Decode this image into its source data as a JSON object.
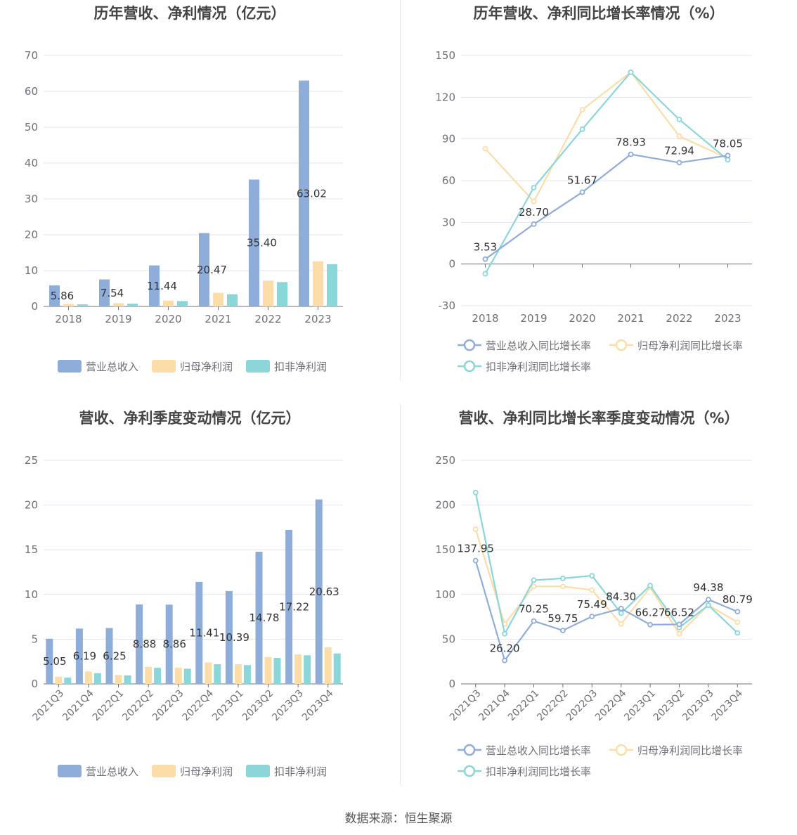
{
  "source_text": "数据来源：恒生聚源",
  "chart_data": [
    {
      "type": "bar",
      "title": "历年营收、净利情况（亿元）",
      "categories": [
        "2018",
        "2019",
        "2020",
        "2021",
        "2022",
        "2023"
      ],
      "ylim": [
        0,
        70
      ],
      "yticks": [
        0,
        10,
        20,
        30,
        40,
        50,
        60,
        70
      ],
      "series": [
        {
          "name": "营业总收入",
          "values": [
            5.86,
            7.54,
            11.44,
            20.47,
            35.4,
            63.02
          ],
          "labels": [
            "5.86",
            "7.54",
            "11.44",
            "20.47",
            "35.40",
            "63.02"
          ],
          "color": "#8eadd9"
        },
        {
          "name": "归母净利润",
          "values": [
            0.7,
            0.9,
            1.6,
            3.8,
            7.2,
            12.6
          ],
          "color": "#fddda7"
        },
        {
          "name": "扣非净利润",
          "values": [
            0.6,
            0.8,
            1.5,
            3.4,
            6.8,
            11.8
          ],
          "color": "#8ad6d8"
        }
      ],
      "grid": true,
      "legend": "bottom"
    },
    {
      "type": "line",
      "title": "历年营收、净利同比增长率情况（%）",
      "categories": [
        "2018",
        "2019",
        "2020",
        "2021",
        "2022",
        "2023"
      ],
      "ylim": [
        -30,
        150
      ],
      "yticks": [
        -30,
        0,
        30,
        60,
        90,
        120,
        150
      ],
      "series": [
        {
          "name": "营业总收入同比增长率",
          "values": [
            3.53,
            28.7,
            51.67,
            78.93,
            72.94,
            78.05
          ],
          "labels": [
            "3.53",
            "28.70",
            "51.67",
            "78.93",
            "72.94",
            "78.05"
          ],
          "color": "#8eadd9"
        },
        {
          "name": "归母净利润同比增长率",
          "values": [
            83,
            45,
            111,
            138,
            92,
            76
          ],
          "color": "#fddda7"
        },
        {
          "name": "扣非净利润同比增长率",
          "values": [
            -7,
            55,
            97,
            138,
            104,
            75
          ],
          "color": "#8ad6d8"
        }
      ],
      "grid": true,
      "legend": "bottom"
    },
    {
      "type": "bar",
      "title": "营收、净利季度变动情况（亿元）",
      "categories": [
        "2021Q3",
        "2021Q4",
        "2022Q1",
        "2022Q2",
        "2022Q3",
        "2022Q4",
        "2023Q1",
        "2023Q2",
        "2023Q3",
        "2023Q4"
      ],
      "ylim": [
        0,
        25
      ],
      "yticks": [
        0,
        5,
        10,
        15,
        20,
        25
      ],
      "series": [
        {
          "name": "营业总收入",
          "values": [
            5.05,
            6.19,
            6.25,
            8.88,
            8.86,
            11.41,
            10.39,
            14.78,
            17.22,
            20.63
          ],
          "labels": [
            "5.05",
            "6.19",
            "6.25",
            "8.88",
            "8.86",
            "11.41",
            "10.39",
            "14.78",
            "17.22",
            "20.63"
          ],
          "color": "#8eadd9"
        },
        {
          "name": "归母净利润",
          "values": [
            0.8,
            1.4,
            1.0,
            1.9,
            1.8,
            2.4,
            2.2,
            3.0,
            3.3,
            4.1
          ],
          "color": "#fddda7"
        },
        {
          "name": "扣非净利润",
          "values": [
            0.7,
            1.2,
            0.95,
            1.8,
            1.7,
            2.2,
            2.1,
            2.9,
            3.2,
            3.4
          ],
          "color": "#8ad6d8"
        }
      ],
      "grid": true,
      "legend": "bottom"
    },
    {
      "type": "line",
      "title": "营收、净利同比增长率季度变动情况（%）",
      "categories": [
        "2021Q3",
        "2021Q4",
        "2022Q1",
        "2022Q2",
        "2022Q3",
        "2022Q4",
        "2023Q1",
        "2023Q2",
        "2023Q3",
        "2023Q4"
      ],
      "ylim": [
        0,
        250
      ],
      "yticks": [
        0,
        50,
        100,
        150,
        200,
        250
      ],
      "series": [
        {
          "name": "营业总收入同比增长率",
          "values": [
            137.95,
            26.2,
            70.25,
            59.75,
            75.49,
            84.3,
            66.27,
            66.52,
            94.38,
            80.79
          ],
          "labels": [
            "137.95",
            "26.20",
            "70.25",
            "59.75",
            "75.49",
            "84.30",
            "66.27",
            "66.52",
            "94.38",
            "80.79"
          ],
          "color": "#8eadd9"
        },
        {
          "name": "归母净利润同比增长率",
          "values": [
            173,
            67,
            109,
            109,
            105,
            67,
            108,
            56,
            88,
            69
          ],
          "color": "#fddda7"
        },
        {
          "name": "扣非净利润同比增长率",
          "values": [
            214,
            56,
            116,
            118,
            121,
            79,
            110,
            63,
            88,
            57
          ],
          "color": "#8ad6d8"
        }
      ],
      "grid": true,
      "legend": "bottom"
    }
  ]
}
